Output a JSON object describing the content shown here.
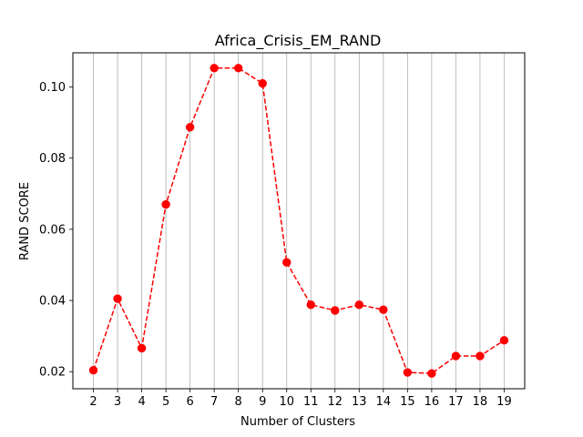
{
  "chart_data": {
    "type": "line",
    "title": "Africa_Crisis_EM_RAND",
    "xlabel": "Number of Clusters",
    "ylabel": "RAND SCORE",
    "x": [
      2,
      3,
      4,
      5,
      6,
      7,
      8,
      9,
      10,
      11,
      12,
      13,
      14,
      15,
      16,
      17,
      18,
      19
    ],
    "series": [
      {
        "name": "RAND SCORE",
        "color": "#ff0000",
        "line_style": "dashed",
        "marker": "circle",
        "values": [
          0.0204,
          0.0405,
          0.0266,
          0.067,
          0.0887,
          0.1053,
          0.1053,
          0.101,
          0.0507,
          0.0388,
          0.0372,
          0.0388,
          0.0374,
          0.0198,
          0.0195,
          0.0244,
          0.0244,
          0.0288
        ]
      }
    ],
    "xlim": [
      1.15,
      19.85
    ],
    "ylim": [
      0.0152,
      0.1096
    ],
    "yticks": [
      0.02,
      0.04,
      0.06,
      0.08,
      0.1
    ],
    "ytick_labels": [
      "0.02",
      "0.04",
      "0.06",
      "0.08",
      "0.10"
    ],
    "grid": "x-only",
    "legend": "none"
  }
}
